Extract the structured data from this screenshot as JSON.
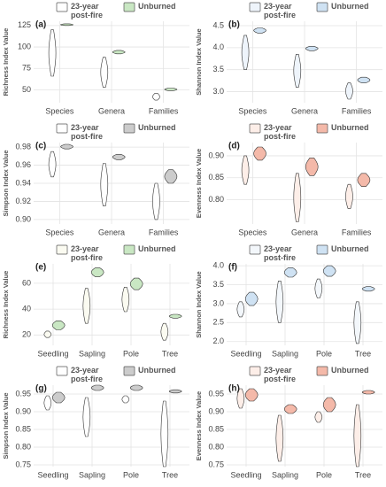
{
  "chart_data": [
    {
      "type": "violin",
      "label": "(a)",
      "y_label": "Richness Index Value",
      "categories": [
        "Species",
        "Genera",
        "Families"
      ],
      "ylim": [
        35,
        130
      ],
      "yticks": [
        50,
        75,
        100,
        125
      ],
      "grid": true,
      "series": [
        {
          "name": "23-year post-fire",
          "color": "#ffffff",
          "min": [
            66,
            53,
            38
          ],
          "max": [
            120,
            88,
            46
          ]
        },
        {
          "name": "Unburned",
          "color": "#c9e7c3",
          "min": [
            125,
            92,
            49
          ],
          "max": [
            127,
            96,
            52
          ]
        }
      ]
    },
    {
      "type": "violin",
      "label": "(b)",
      "y_label": "Shannon Index Value",
      "categories": [
        "Species",
        "Genera",
        "Families"
      ],
      "ylim": [
        2.75,
        4.6
      ],
      "yticks": [
        {
          "value": 3,
          "label": "3.0"
        },
        3.5,
        {
          "value": 4,
          "label": "4.0"
        },
        4.5
      ],
      "grid": true,
      "series": [
        {
          "name": "23-year post-fire",
          "color": "#eef4fb",
          "min": [
            3.5,
            3.1,
            2.83
          ],
          "max": [
            4.28,
            3.85,
            3.2
          ]
        },
        {
          "name": "Unburned",
          "color": "#cfe2f3",
          "min": [
            4.33,
            3.93,
            3.2
          ],
          "max": [
            4.45,
            4.03,
            3.33
          ]
        }
      ]
    },
    {
      "type": "violin",
      "label": "(c)",
      "y_label": "Simpson Index Value",
      "categories": [
        "Species",
        "Genera",
        "Families"
      ],
      "ylim": [
        0.895,
        0.985
      ],
      "yticks": [
        {
          "value": 0.9,
          "label": "0.90"
        },
        0.92,
        0.94,
        0.96,
        0.98
      ],
      "grid": true,
      "series": [
        {
          "name": "23-year post-fire",
          "color": "#ffffff",
          "min": [
            0.947,
            0.915,
            0.9
          ],
          "max": [
            0.975,
            0.962,
            0.94
          ]
        },
        {
          "name": "Unburned",
          "color": "#cccccc",
          "min": [
            0.978,
            0.966,
            0.94
          ],
          "max": [
            0.983,
            0.972,
            0.955
          ]
        }
      ]
    },
    {
      "type": "violin",
      "label": "(d)",
      "y_label": "Evenness Index Value",
      "categories": [
        "Species",
        "Genera",
        "Families"
      ],
      "ylim": [
        0.745,
        0.93
      ],
      "yticks": [
        {
          "value": 0.8,
          "label": "0.80"
        },
        0.85,
        {
          "value": 0.9,
          "label": "0.90"
        }
      ],
      "grid": true,
      "series": [
        {
          "name": "23-year post-fire",
          "color": "#fdeee8",
          "min": [
            0.835,
            0.75,
            0.78
          ],
          "max": [
            0.9,
            0.86,
            0.835
          ]
        },
        {
          "name": "Unburned",
          "color": "#f4b9a9",
          "min": [
            0.89,
            0.855,
            0.83
          ],
          "max": [
            0.92,
            0.895,
            0.86
          ]
        }
      ]
    },
    {
      "type": "violin",
      "label": "(e)",
      "y_label": "Richness Index Value",
      "categories": [
        "Seedling",
        "Sapling",
        "Pole",
        "Tree"
      ],
      "ylim": [
        12,
        75
      ],
      "yticks": [
        20,
        40,
        60
      ],
      "grid": true,
      "series": [
        {
          "name": "23-year post-fire",
          "color": "#fbfbf1",
          "min": [
            18,
            29,
            38,
            16
          ],
          "max": [
            23,
            56,
            57,
            29
          ]
        },
        {
          "name": "Unburned",
          "color": "#c9e7c3",
          "min": [
            24,
            65,
            55,
            33
          ],
          "max": [
            31,
            72,
            64,
            36
          ]
        }
      ]
    },
    {
      "type": "violin",
      "label": "(f)",
      "y_label": "Shannon Index Value",
      "categories": [
        "Seedling",
        "Sapling",
        "Pole",
        "Tree"
      ],
      "ylim": [
        1.9,
        4.05
      ],
      "yticks": [
        {
          "value": 2,
          "label": "2.0"
        },
        2.5,
        {
          "value": 3,
          "label": "3.0"
        },
        3.5,
        {
          "value": 4,
          "label": "4.0"
        }
      ],
      "grid": true,
      "series": [
        {
          "name": "23-year post-fire",
          "color": "#f3f7fb",
          "min": [
            2.65,
            2.5,
            3.15,
            1.95
          ],
          "max": [
            3.05,
            3.6,
            3.65,
            3.05
          ]
        },
        {
          "name": "Unburned",
          "color": "#cfe2f3",
          "min": [
            2.95,
            3.7,
            3.72,
            3.33
          ],
          "max": [
            3.3,
            3.95,
            4.0,
            3.45
          ]
        }
      ]
    },
    {
      "type": "violin",
      "label": "(g)",
      "y_label": "Simpson Index Value",
      "categories": [
        "Seedling",
        "Sapling",
        "Pole",
        "Tree"
      ],
      "ylim": [
        0.745,
        0.975
      ],
      "yticks": [
        0.75,
        {
          "value": 0.8,
          "label": "0.80"
        },
        0.85,
        {
          "value": 0.9,
          "label": "0.90"
        },
        0.95
      ],
      "grid": true,
      "series": [
        {
          "name": "23-year post-fire",
          "color": "#ffffff",
          "min": [
            0.905,
            0.83,
            0.925,
            0.745
          ],
          "max": [
            0.945,
            0.94,
            0.945,
            0.93
          ]
        },
        {
          "name": "Unburned",
          "color": "#cccccc",
          "min": [
            0.925,
            0.96,
            0.96,
            0.953
          ],
          "max": [
            0.955,
            0.975,
            0.975,
            0.962
          ]
        }
      ]
    },
    {
      "type": "violin",
      "label": "(h)",
      "y_label": "Evenness Index Value",
      "categories": [
        "Seedling",
        "Sapling",
        "Pole",
        "Tree"
      ],
      "ylim": [
        0.745,
        0.975
      ],
      "yticks": [
        0.75,
        {
          "value": 0.8,
          "label": "0.80"
        },
        0.85,
        {
          "value": 0.9,
          "label": "0.90"
        },
        0.95
      ],
      "grid": true,
      "series": [
        {
          "name": "23-year post-fire",
          "color": "#fdeee8",
          "min": [
            0.91,
            0.76,
            0.87,
            0.745
          ],
          "max": [
            0.965,
            0.89,
            0.9,
            0.92
          ]
        },
        {
          "name": "Unburned",
          "color": "#f4b9a9",
          "min": [
            0.93,
            0.895,
            0.9,
            0.95
          ],
          "max": [
            0.965,
            0.92,
            0.94,
            0.96
          ]
        }
      ]
    }
  ]
}
